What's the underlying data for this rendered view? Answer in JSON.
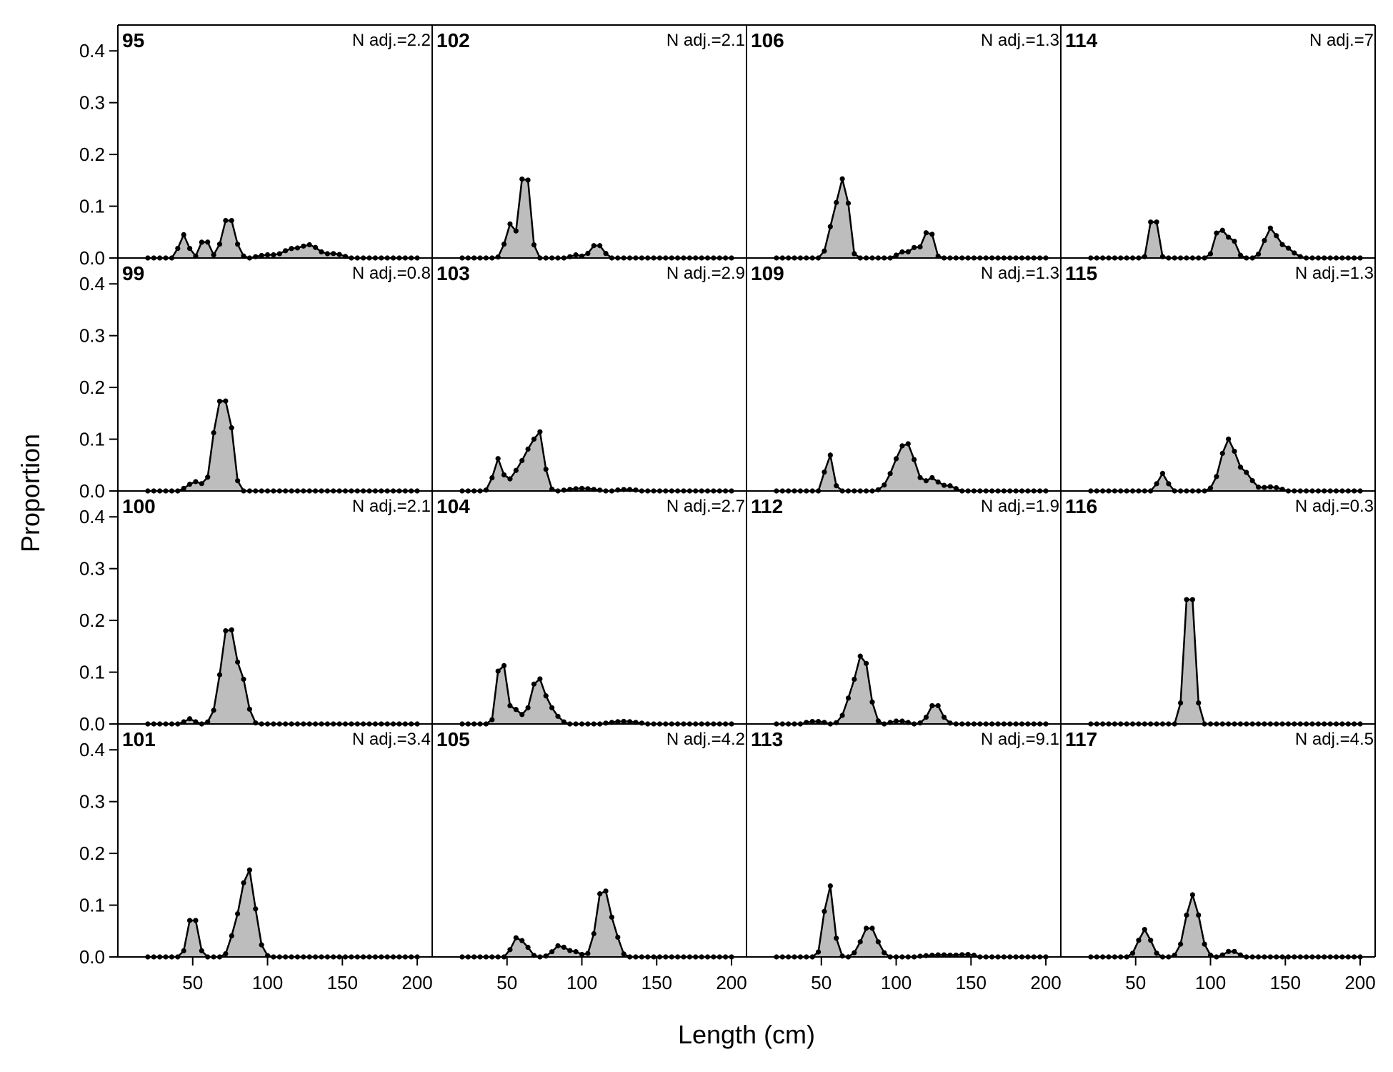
{
  "chart_data": {
    "type": "area",
    "xlabel": "Length (cm)",
    "ylabel": "Proportion",
    "xlim": [
      0,
      210
    ],
    "ylim": [
      0,
      0.45
    ],
    "xticks": [
      50,
      100,
      150,
      200
    ],
    "yticks": [
      0.0,
      0.1,
      0.2,
      0.3,
      0.4
    ],
    "ytick_labels": [
      "0.0",
      "0.1",
      "0.2",
      "0.3",
      "0.4"
    ],
    "bin_range": [
      20,
      200
    ],
    "bin_width": 4,
    "panels": [
      {
        "id": "95",
        "n_adj": "N adj.=2.2",
        "peaks": [
          [
            44,
            0.045,
            3
          ],
          [
            58,
            0.042,
            2.5
          ],
          [
            74,
            0.082,
            4
          ],
          [
            100,
            0.006,
            6
          ],
          [
            115,
            0.015,
            5
          ],
          [
            128,
            0.025,
            6
          ],
          [
            145,
            0.008,
            5
          ]
        ]
      },
      {
        "id": "99",
        "n_adj": "N adj.=0.8",
        "peaks": [
          [
            52,
            0.018,
            5
          ],
          [
            67,
            0.16,
            3.5
          ],
          [
            74,
            0.145,
            3
          ]
        ]
      },
      {
        "id": "100",
        "n_adj": "N adj.=2.1",
        "peaks": [
          [
            48,
            0.01,
            3
          ],
          [
            74,
            0.195,
            5
          ],
          [
            84,
            0.06,
            3
          ]
        ]
      },
      {
        "id": "101",
        "n_adj": "N adj.=3.4",
        "peaks": [
          [
            50,
            0.088,
            3
          ],
          [
            87,
            0.172,
            4.5
          ],
          [
            78,
            0.04,
            3
          ]
        ]
      },
      {
        "id": "102",
        "n_adj": "N adj.=2.1",
        "peaks": [
          [
            52,
            0.065,
            3
          ],
          [
            62,
            0.188,
            3
          ],
          [
            96,
            0.006,
            3
          ],
          [
            110,
            0.027,
            4
          ]
        ]
      },
      {
        "id": "103",
        "n_adj": "N adj.=2.9",
        "peaks": [
          [
            44,
            0.062,
            3
          ],
          [
            55,
            0.025,
            4
          ],
          [
            65,
            0.078,
            5
          ],
          [
            72,
            0.085,
            3
          ],
          [
            100,
            0.005,
            8
          ],
          [
            130,
            0.003,
            6
          ]
        ]
      },
      {
        "id": "104",
        "n_adj": "N adj.=2.7",
        "peaks": [
          [
            46,
            0.135,
            2.5
          ],
          [
            54,
            0.03,
            5
          ],
          [
            70,
            0.082,
            4
          ],
          [
            78,
            0.03,
            5
          ],
          [
            128,
            0.005,
            8
          ]
        ]
      },
      {
        "id": "105",
        "n_adj": "N adj.=4.2",
        "peaks": [
          [
            56,
            0.034,
            3
          ],
          [
            62,
            0.022,
            3
          ],
          [
            85,
            0.022,
            4
          ],
          [
            95,
            0.01,
            4
          ],
          [
            114,
            0.138,
            4
          ],
          [
            122,
            0.04,
            3
          ]
        ]
      },
      {
        "id": "106",
        "n_adj": "N adj.=1.3",
        "peaks": [
          [
            60,
            0.1,
            4
          ],
          [
            66,
            0.127,
            2.5
          ],
          [
            105,
            0.012,
            4
          ],
          [
            114,
            0.022,
            3
          ],
          [
            122,
            0.063,
            2.5
          ]
        ]
      },
      {
        "id": "109",
        "n_adj": "N adj.=1.3",
        "peaks": [
          [
            55,
            0.075,
            2.5
          ],
          [
            100,
            0.04,
            5
          ],
          [
            108,
            0.08,
            5
          ],
          [
            124,
            0.025,
            4
          ],
          [
            135,
            0.01,
            4
          ]
        ]
      },
      {
        "id": "112",
        "n_adj": "N adj.=1.9",
        "peaks": [
          [
            46,
            0.005,
            6
          ],
          [
            70,
            0.05,
            4
          ],
          [
            78,
            0.13,
            4
          ],
          [
            102,
            0.006,
            5
          ],
          [
            126,
            0.04,
            4
          ]
        ]
      },
      {
        "id": "113",
        "n_adj": "N adj.=9.1",
        "peaks": [
          [
            55,
            0.145,
            3
          ],
          [
            82,
            0.06,
            5
          ],
          [
            130,
            0.004,
            10
          ],
          [
            148,
            0.004,
            5
          ]
        ]
      },
      {
        "id": "114",
        "n_adj": "N adj.=7",
        "peaks": [
          [
            62,
            0.105,
            2.2
          ],
          [
            106,
            0.06,
            3
          ],
          [
            114,
            0.04,
            3
          ],
          [
            140,
            0.055,
            4
          ],
          [
            150,
            0.02,
            5
          ]
        ]
      },
      {
        "id": "115",
        "n_adj": "N adj.=1.3",
        "peaks": [
          [
            68,
            0.034,
            3
          ],
          [
            112,
            0.1,
            5
          ],
          [
            124,
            0.03,
            4
          ],
          [
            140,
            0.008,
            6
          ]
        ]
      },
      {
        "id": "116",
        "n_adj": "N adj.=0.3",
        "peaks": [
          [
            86,
            0.3,
            3
          ]
        ]
      },
      {
        "id": "117",
        "n_adj": "N adj.=4.5",
        "peaks": [
          [
            56,
            0.053,
            4
          ],
          [
            88,
            0.12,
            4.5
          ],
          [
            114,
            0.012,
            4
          ]
        ]
      }
    ]
  }
}
